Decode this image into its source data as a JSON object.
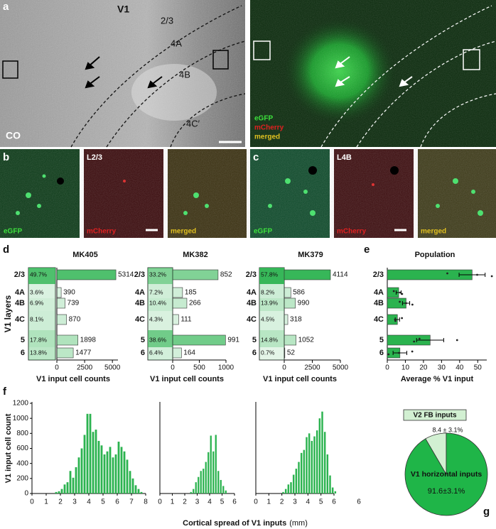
{
  "panel_labels": [
    "a",
    "b",
    "c",
    "d",
    "e",
    "f",
    "g"
  ],
  "images": {
    "a_left": {
      "area": "V1",
      "layers": [
        "2/3",
        "4A",
        "4B",
        "4C′"
      ],
      "stain": "CO"
    },
    "a_right": {
      "channels": [
        "eGFP",
        "mCherry",
        "merged"
      ]
    },
    "b": {
      "layer": "L2/3",
      "channels": [
        "eGFP",
        "mCherry",
        "merged"
      ]
    },
    "c": {
      "layer": "L4B",
      "channels": [
        "eGFP",
        "mCherry",
        "merged"
      ]
    }
  },
  "chart_data": [
    {
      "type": "bar",
      "orientation": "horizontal",
      "title": "MK405",
      "ylabel": "V1 layers",
      "xlabel": "V1 input cell counts",
      "categories": [
        "2/3",
        "4A",
        "4B",
        "4C",
        "5",
        "6"
      ],
      "values": [
        5314,
        390,
        739,
        870,
        1898,
        1477
      ],
      "percents": [
        49.7,
        3.6,
        6.9,
        8.1,
        17.8,
        13.8
      ],
      "percent_labels": [
        "49.7%",
        "3.6%",
        "6.9%",
        "8.1%",
        "17.8%",
        "13.8%"
      ],
      "color": "#2bb34f",
      "xlim": [
        0,
        5500
      ],
      "xticks": [
        0,
        2500,
        5000
      ]
    },
    {
      "type": "bar",
      "orientation": "horizontal",
      "title": "MK382",
      "xlabel": "V1 input cell counts",
      "categories": [
        "2/3",
        "4A",
        "4B",
        "4C",
        "5",
        "6"
      ],
      "values": [
        852,
        185,
        266,
        111,
        991,
        164
      ],
      "percents": [
        33.2,
        7.2,
        10.4,
        4.3,
        38.6,
        6.4
      ],
      "percent_labels": [
        "33.2%",
        "7.2%",
        "10.4%",
        "4.3%",
        "38.6%",
        "6.4%"
      ],
      "color": "#2bb34f",
      "xlim": [
        0,
        1000
      ],
      "xticks": [
        0,
        500,
        1000
      ]
    },
    {
      "type": "bar",
      "orientation": "horizontal",
      "title": "MK379",
      "xlabel": "V1 input cell counts",
      "categories": [
        "2/3",
        "4A",
        "4B",
        "4C",
        "5",
        "6"
      ],
      "values": [
        4114,
        586,
        990,
        318,
        1052,
        52
      ],
      "percents": [
        57.8,
        8.2,
        13.9,
        4.5,
        14.8,
        0.7
      ],
      "percent_labels": [
        "57.8%",
        "8.2%",
        "13.9%",
        "4.5%",
        "14.8%",
        "0.7%"
      ],
      "color": "#2bb34f",
      "xlim": [
        0,
        5000
      ],
      "xticks": [
        0,
        2500,
        5000
      ]
    },
    {
      "type": "bar",
      "orientation": "horizontal",
      "title": "Population",
      "xlabel": "Average % V1 input",
      "categories": [
        "2/3",
        "4A",
        "4B",
        "4C",
        "5",
        "6"
      ],
      "values": [
        46.9,
        6.3,
        10.4,
        5.6,
        23.7,
        7.0
      ],
      "errors": [
        7.2,
        1.4,
        2.0,
        1.2,
        7.5,
        3.8
      ],
      "points": [
        [
          33.2,
          49.7,
          57.8
        ],
        [
          3.6,
          7.2,
          8.2
        ],
        [
          6.9,
          10.4,
          13.9
        ],
        [
          8.1,
          4.3,
          4.5
        ],
        [
          17.8,
          38.6,
          14.8
        ],
        [
          13.8,
          6.4,
          0.7
        ]
      ],
      "color": "#2bb34f",
      "xlim": [
        0,
        55
      ],
      "xticks": [
        0,
        10,
        20,
        30,
        40,
        50
      ]
    },
    {
      "type": "histogram",
      "ylabel": "V1 input cell count",
      "bins": [
        1.6,
        1.8,
        2.0,
        2.2,
        2.4,
        2.6,
        2.8,
        3.0,
        3.2,
        3.4,
        3.6,
        3.8,
        4.0,
        4.2,
        4.4,
        4.6,
        4.8,
        5.0,
        5.2,
        5.4,
        5.6,
        5.8,
        6.0,
        6.2,
        6.4,
        6.6,
        6.8,
        7.0,
        7.2,
        7.4,
        7.6,
        7.8
      ],
      "counts": [
        20,
        30,
        60,
        120,
        150,
        300,
        210,
        350,
        480,
        600,
        780,
        1060,
        1060,
        820,
        850,
        700,
        640,
        520,
        560,
        620,
        480,
        520,
        690,
        620,
        560,
        450,
        300,
        200,
        110,
        60,
        20
      ],
      "color": "#2bb34f",
      "xlim": [
        0,
        8
      ],
      "xticks": [
        0,
        1,
        2,
        3,
        4,
        5,
        6,
        7,
        8
      ],
      "ylim": [
        0,
        1200
      ],
      "yticks": [
        0,
        200,
        400,
        600,
        800,
        1000,
        1200
      ]
    },
    {
      "type": "histogram",
      "xlabel": "Cortical spread of V1 inputs",
      "xlabel_unit": "(mm)",
      "bins": [
        2.4,
        2.6,
        2.8,
        3.0,
        3.2,
        3.4,
        3.6,
        3.8,
        4.0,
        4.2,
        4.4,
        4.6,
        4.8,
        5.0,
        5.2,
        5.4
      ],
      "counts": [
        20,
        60,
        150,
        220,
        300,
        330,
        420,
        550,
        770,
        560,
        780,
        300,
        180,
        100,
        40
      ],
      "color": "#2bb34f",
      "xlim": [
        0,
        6
      ],
      "xticks": [
        0,
        1,
        2,
        3,
        4,
        5,
        6
      ],
      "ylim": [
        0,
        1200
      ]
    },
    {
      "type": "histogram",
      "annotation": "6",
      "bins": [
        2.0,
        2.2,
        2.4,
        2.6,
        2.8,
        3.0,
        3.2,
        3.4,
        3.6,
        3.8,
        4.0,
        4.2,
        4.4,
        4.6,
        4.8,
        5.0,
        5.2,
        5.4,
        5.6,
        5.8,
        6.0,
        6.2
      ],
      "counts": [
        20,
        60,
        120,
        150,
        250,
        330,
        420,
        540,
        580,
        750,
        800,
        700,
        760,
        840,
        1000,
        1090,
        820,
        520,
        240,
        80,
        30
      ],
      "color": "#2bb34f",
      "xlim": [
        0,
        6
      ],
      "xticks": [
        0,
        1,
        2,
        3,
        4,
        5,
        6
      ],
      "ylim": [
        0,
        1200
      ]
    },
    {
      "type": "pie",
      "labels": [
        "V2 FB inputs",
        "V1 horizontal inputs"
      ],
      "values": [
        8.4,
        91.6
      ],
      "value_labels": [
        "8.4 ± 3.1%",
        "91.6±3.1%"
      ],
      "colors": [
        "#d2f0d2",
        "#1fb548"
      ]
    }
  ]
}
